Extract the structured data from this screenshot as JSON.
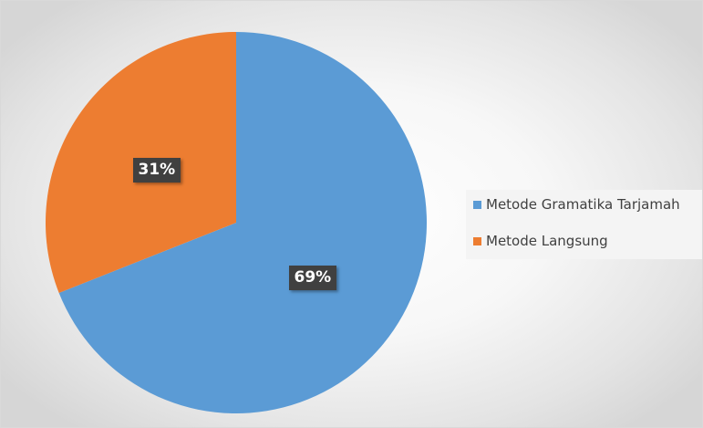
{
  "chart_data": {
    "type": "pie",
    "title": "",
    "categories": [
      "Metode Gramatika Tarjamah",
      "Metode Langsung"
    ],
    "values": [
      69,
      31
    ],
    "data_labels": [
      "69%",
      "31%"
    ],
    "colors": [
      "#5b9bd5",
      "#ed7d31"
    ],
    "legend_position": "right"
  }
}
